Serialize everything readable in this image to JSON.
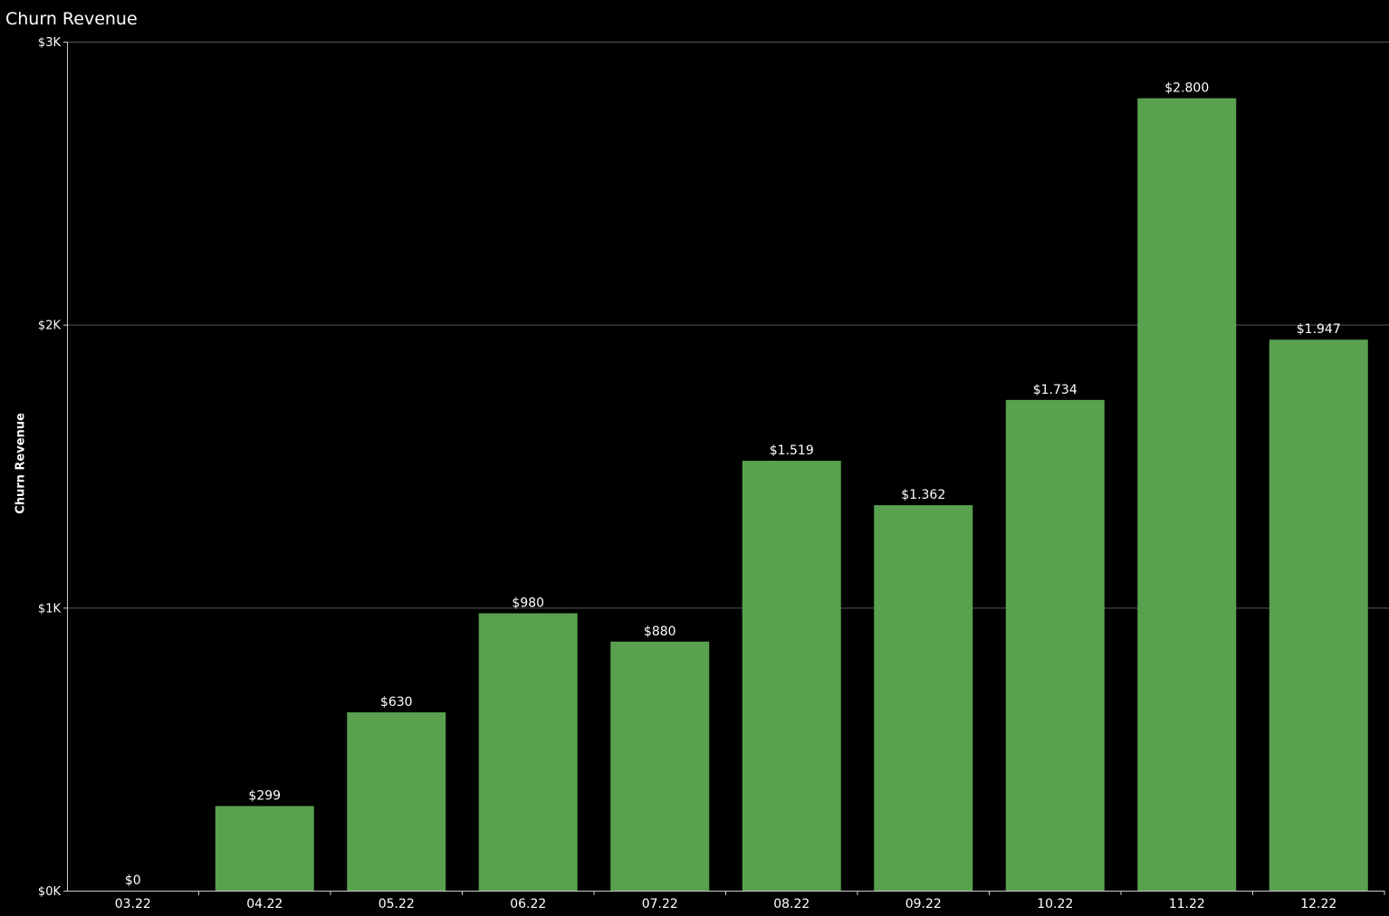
{
  "chart_data": {
    "type": "bar",
    "title": "Churn Revenue",
    "xlabel": "",
    "ylabel": "Churn Revenue",
    "categories": [
      "03.22",
      "04.22",
      "05.22",
      "06.22",
      "07.22",
      "08.22",
      "09.22",
      "10.22",
      "11.22",
      "12.22"
    ],
    "values": [
      0,
      299,
      630,
      980,
      880,
      1519,
      1362,
      1734,
      2800,
      1947
    ],
    "value_labels": [
      "$0",
      "$299",
      "$630",
      "$980",
      "$880",
      "$1.519",
      "$1.362",
      "$1.734",
      "$2.800",
      "$1.947"
    ],
    "ylim": [
      0,
      3000
    ],
    "yticks": [
      {
        "value": 0,
        "label": "$0K"
      },
      {
        "value": 1000,
        "label": "$1K"
      },
      {
        "value": 2000,
        "label": "$2K"
      },
      {
        "value": 3000,
        "label": "$3K"
      }
    ],
    "grid": true,
    "legend": "none",
    "colors": {
      "bar": "#59a14f",
      "background": "#000000",
      "gridline": "#555555",
      "axis": "#cccccc",
      "text": "#ffffff"
    }
  }
}
